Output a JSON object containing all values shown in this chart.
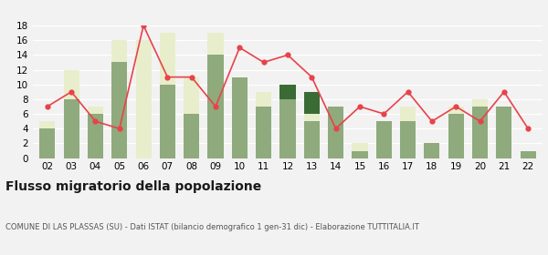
{
  "years": [
    "02",
    "03",
    "04",
    "05",
    "06",
    "07",
    "08",
    "09",
    "10",
    "11",
    "12",
    "13",
    "14",
    "15",
    "16",
    "17",
    "18",
    "19",
    "20",
    "21",
    "22"
  ],
  "iscritti_comuni": [
    4,
    8,
    6,
    13,
    0,
    10,
    6,
    14,
    11,
    7,
    8,
    5,
    7,
    1,
    5,
    5,
    2,
    6,
    7,
    7,
    1
  ],
  "iscritti_estero": [
    1,
    4,
    1,
    3,
    16,
    7,
    5,
    3,
    0,
    2,
    0,
    1,
    0,
    1,
    0,
    2,
    0,
    1,
    1,
    0,
    0
  ],
  "iscritti_altri": [
    0,
    0,
    0,
    0,
    0,
    0,
    0,
    0,
    0,
    0,
    2,
    3,
    0,
    0,
    0,
    0,
    0,
    0,
    0,
    0,
    0
  ],
  "cancellati": [
    7,
    9,
    5,
    4,
    18,
    11,
    11,
    7,
    15,
    13,
    14,
    11,
    4,
    7,
    6,
    9,
    5,
    7,
    5,
    9,
    4
  ],
  "color_comuni": "#8faa7c",
  "color_estero": "#e8eecc",
  "color_altri": "#3a6b35",
  "color_cancellati": "#e8424a",
  "title": "Flusso migratorio della popolazione",
  "subtitle": "COMUNE DI LAS PLASSAS (SU) - Dati ISTAT (bilancio demografico 1 gen-31 dic) - Elaborazione TUTTITALIA.IT",
  "ylim": [
    0,
    18
  ],
  "yticks": [
    0,
    2,
    4,
    6,
    8,
    10,
    12,
    14,
    16,
    18
  ],
  "bg_color": "#f2f2f2"
}
